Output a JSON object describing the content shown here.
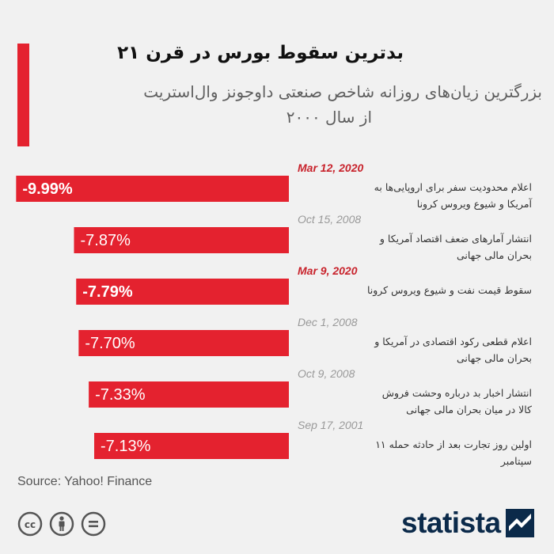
{
  "header": {
    "title": "بدترین سقوط بورس در قرن ۲۱",
    "subtitle_line1": "بزرگترین زیان‌های روزانه شاخص صنعتی داوجونز وال‌استریت",
    "subtitle_line2": "از سال ۲۰۰۰"
  },
  "colors": {
    "accent": "#e4222f",
    "date_covid": "#c8232c",
    "date_other": "#999999"
  },
  "chart_data": {
    "type": "bar",
    "orientation": "horizontal",
    "title": "بدترین سقوط بورس در قرن ۲۱",
    "xlim": [
      -10,
      0
    ],
    "items": [
      {
        "date": "Mar 12, 2020",
        "value": -9.99,
        "label": "-9.99%",
        "highlight": true,
        "desc_line1": "اعلام محدودیت سفر برای اروپایی‌ها به",
        "desc_line2": "آمریکا و شیوع ویروس کرونا"
      },
      {
        "date": "Oct 15, 2008",
        "value": -7.87,
        "label": "-7.87%",
        "highlight": false,
        "desc_line1": "انتشار آمارهای ضعف اقتصاد آمریکا  و",
        "desc_line2": "بحران مالی جهانی"
      },
      {
        "date": "Mar 9, 2020",
        "value": -7.79,
        "label": "-7.79%",
        "highlight": true,
        "desc_line1": "سقوط قیمت نفت و شیوع ویروس کرونا",
        "desc_line2": ""
      },
      {
        "date": "Dec 1, 2008",
        "value": -7.7,
        "label": "-7.70%",
        "highlight": false,
        "desc_line1": "اعلام قطعی رکود اقتصادی در آمریکا و",
        "desc_line2": "بحران مالی جهانی"
      },
      {
        "date": "Oct 9, 2008",
        "value": -7.33,
        "label": "-7.33%",
        "highlight": false,
        "desc_line1": "انتشار اخبار بد درباره وحشت فروش",
        "desc_line2": "کالا در میان بحران مالی جهانی"
      },
      {
        "date": "Sep 17, 2001",
        "value": -7.13,
        "label": "-7.13%",
        "highlight": false,
        "desc_line1": "اولین روز تجارت بعد از حادثه حمله ۱۱",
        "desc_line2": "سپتامبر"
      }
    ]
  },
  "footer": {
    "source": "Source: Yahoo! Finance",
    "logo_text": "statista",
    "license_icons": [
      "cc-icon",
      "attribution-icon",
      "no-derivatives-icon"
    ]
  }
}
